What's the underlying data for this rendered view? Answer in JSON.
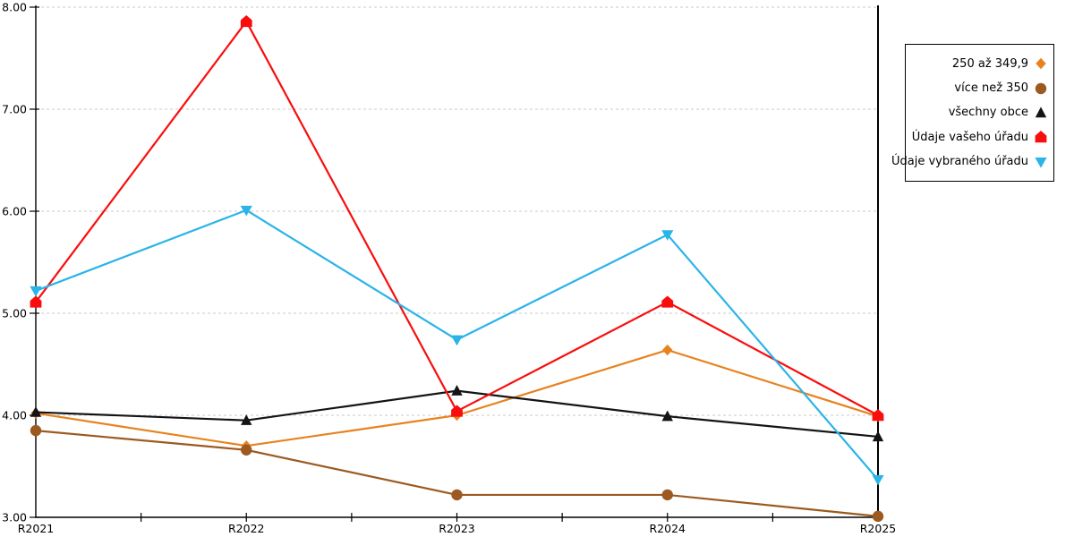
{
  "chart_data": {
    "type": "line",
    "categories": [
      "R2021",
      "R2022",
      "R2023",
      "R2024",
      "R2025"
    ],
    "series": [
      {
        "name": "250 až 349,9",
        "marker": "diamond",
        "color": "#E8821F",
        "values": [
          4.02,
          3.7,
          4.0,
          4.64,
          3.99
        ]
      },
      {
        "name": "více než 350",
        "marker": "circle",
        "color": "#9C5A20",
        "values": [
          3.85,
          3.66,
          3.22,
          3.22,
          3.01
        ]
      },
      {
        "name": "všechny obce",
        "marker": "triangle-up",
        "color": "#141414",
        "values": [
          4.03,
          3.95,
          4.24,
          3.99,
          3.79
        ]
      },
      {
        "name": "Údaje vašeho úřadu",
        "marker": "pentagon",
        "color": "#F90D0D",
        "values": [
          5.11,
          7.86,
          4.04,
          5.11,
          4.0
        ]
      },
      {
        "name": "Údaje vybraného úřadu",
        "marker": "triangle-down",
        "color": "#2BB4E8",
        "values": [
          5.22,
          6.01,
          4.74,
          5.77,
          3.37
        ]
      }
    ],
    "ylim": [
      3,
      8
    ],
    "ytick_step": 1,
    "ytick_labels": [
      "3.00",
      "4.00",
      "5.00",
      "6.00",
      "7.00",
      "8.00"
    ],
    "xlabel": "",
    "ylabel": "",
    "title": "",
    "grid": "horizontal-dashed",
    "grid_color": "#C8C8C8",
    "axis_color": "#000000",
    "background": "#FFFFFF",
    "legend_position": "right"
  }
}
